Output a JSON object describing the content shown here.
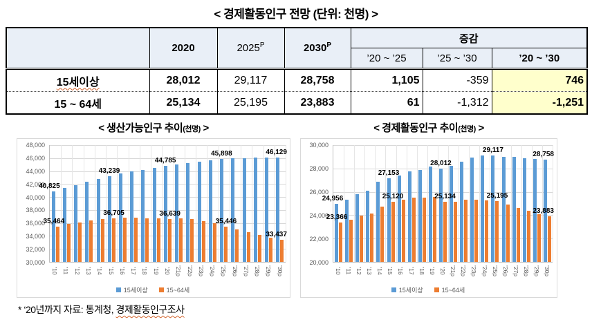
{
  "title": "< 경제활동인구 전망 (단위: 천명) >",
  "table": {
    "header_bg": "#E9EFF7",
    "highlight_color": "#FFFFCC",
    "headers": {
      "y2020": "2020",
      "y2025": "2025",
      "y2025_sup": "P",
      "y2030": "2030",
      "y2030_sup": "P",
      "change_group": "증감",
      "c1": "’20 ~ ’25",
      "c2": "’25 ~ ’30",
      "c3": "’20 ~ ’30"
    },
    "rows": [
      {
        "label": "15세이상",
        "y2020": "28,012",
        "y2025": "29,117",
        "y2030": "28,758",
        "c1": "1,105",
        "c2": "-359",
        "c3": "746"
      },
      {
        "label": "15 ~ 64세",
        "y2020": "25,134",
        "y2025": "25,195",
        "y2030": "23,883",
        "c1": "61",
        "c2": "-1,312",
        "c3": "-1,251"
      }
    ]
  },
  "chart_data": [
    {
      "type": "bar",
      "title_main": "< 생산가능인구 추이",
      "title_unit": "(천명)",
      "title_close": " >",
      "ylim": [
        30000,
        48000
      ],
      "ystep": 2000,
      "grid": true,
      "legend_position": "bottom",
      "categories": [
        "’10",
        "’11",
        "’12",
        "’13",
        "’14",
        "’15",
        "’16",
        "’17",
        "’18",
        "’19",
        "’20",
        "’21p",
        "’22p",
        "’23p",
        "’24p",
        "’25p",
        "’26p",
        "’27p",
        "’28p",
        "’29p",
        "’30p"
      ],
      "series": [
        {
          "name": "15세이상",
          "color": "#5B9BD5",
          "values": [
            40825,
            41387,
            41857,
            42304,
            42795,
            43239,
            43606,
            43931,
            44182,
            44504,
            44785,
            45038,
            45262,
            45456,
            45693,
            45898,
            45976,
            46024,
            46055,
            46082,
            46129
          ],
          "labels": {
            "0": "40,825",
            "5": "43,239",
            "10": "44,785",
            "15": "45,898",
            "20": "46,129"
          }
        },
        {
          "name": "15~64세",
          "color": "#ED7D31",
          "values": [
            35464,
            35808,
            36108,
            36343,
            36574,
            36705,
            36778,
            36820,
            36757,
            36759,
            36639,
            36667,
            36563,
            36327,
            35931,
            35446,
            34980,
            34624,
            34120,
            33704,
            33437
          ],
          "labels": {
            "0": "35,464",
            "5": "36,705",
            "10": "36,639",
            "15": "35,446",
            "20": "33,437"
          }
        }
      ]
    },
    {
      "type": "bar",
      "title_main": "< 경제활동인구 추이",
      "title_unit": "(천명)",
      "title_close": " >",
      "ylim": [
        20000,
        30000
      ],
      "ystep": 2000,
      "grid": true,
      "legend_position": "bottom",
      "categories": [
        "’10",
        "’11",
        "’12",
        "’13",
        "’14",
        "’15",
        "’16",
        "’17",
        "’18",
        "’19",
        "’20",
        "’21p",
        "’22p",
        "’23p",
        "’24p",
        "’25p",
        "’26p",
        "’27p",
        "’28p",
        "’29p",
        "’30p"
      ],
      "series": [
        {
          "name": "15세이상",
          "color": "#5B9BD5",
          "values": [
            24956,
            25299,
            25781,
            26108,
            26836,
            27153,
            27418,
            27748,
            27895,
            28186,
            28012,
            28250,
            28610,
            28940,
            29120,
            29117,
            29000,
            29010,
            28890,
            28810,
            28758
          ],
          "labels": {
            "0": "24,956",
            "5": "27,153",
            "10": "28,012",
            "15": "29,117",
            "20": "28,758"
          }
        },
        {
          "name": "15~64세",
          "color": "#ED7D31",
          "values": [
            23366,
            23606,
            23940,
            24170,
            24710,
            25120,
            25297,
            25500,
            25510,
            25550,
            25134,
            25160,
            25310,
            25330,
            25290,
            25195,
            24900,
            24610,
            24380,
            24080,
            23883
          ],
          "labels": {
            "0": "23,366",
            "5": "25,120",
            "10": "25,134",
            "15": "25,195",
            "20": "23,883"
          }
        }
      ]
    }
  ],
  "footnote": {
    "prefix": "* ‘20년까지 자료: 통계청, ",
    "underlined": "경제활동인구조사"
  }
}
